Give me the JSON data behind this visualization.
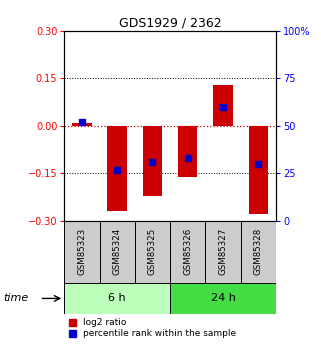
{
  "title": "GDS1929 / 2362",
  "samples": [
    "GSM85323",
    "GSM85324",
    "GSM85325",
    "GSM85326",
    "GSM85327",
    "GSM85328"
  ],
  "log2_ratios": [
    0.01,
    -0.27,
    -0.22,
    -0.16,
    0.13,
    -0.28
  ],
  "percentile_ranks": [
    0.52,
    0.27,
    0.31,
    0.33,
    0.6,
    0.3
  ],
  "ylim_left": [
    -0.3,
    0.3
  ],
  "ylim_right": [
    0,
    100
  ],
  "yticks_left": [
    -0.3,
    -0.15,
    0,
    0.15,
    0.3
  ],
  "yticks_right": [
    0,
    25,
    50,
    75,
    100
  ],
  "groups": [
    {
      "label": "6 h",
      "indices": [
        0,
        1,
        2
      ],
      "color": "#bbffbb"
    },
    {
      "label": "24 h",
      "indices": [
        3,
        4,
        5
      ],
      "color": "#44dd44"
    }
  ],
  "bar_color": "#cc0000",
  "percentile_color": "#0000cc",
  "bar_width": 0.55,
  "sample_box_color": "#cccccc",
  "hline_color": "#cc0000",
  "grid_color": "#000000"
}
